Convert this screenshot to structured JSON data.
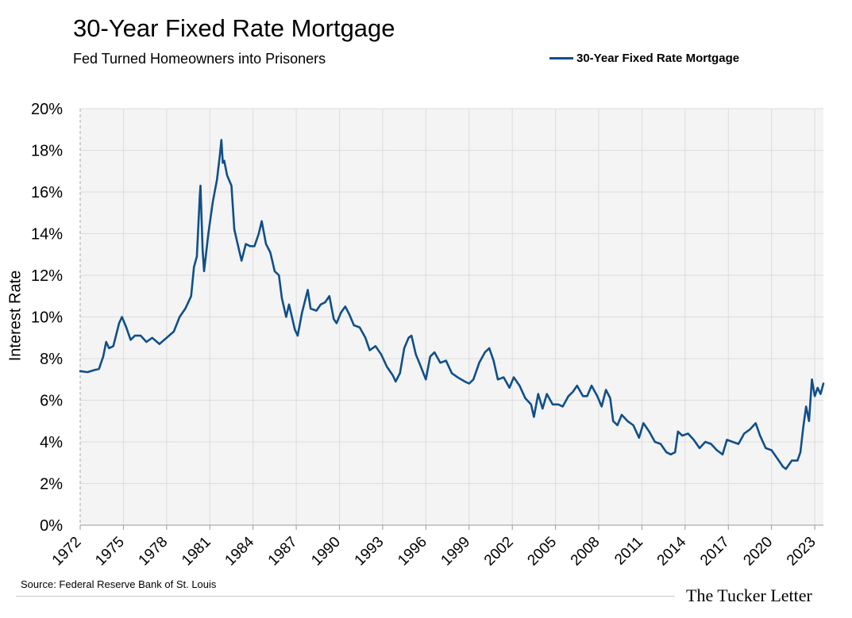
{
  "header": {
    "title": "30-Year Fixed Rate Mortgage",
    "subtitle": "Fed Turned Homeowners into Prisoners"
  },
  "footer": {
    "source": "Source: Federal Reserve Bank of St. Louis",
    "brand": "The Tucker Letter"
  },
  "chart_data": {
    "type": "line",
    "ylabel": "Interest Rate",
    "xlabel": "",
    "xlim": [
      1972,
      2023.6
    ],
    "ylim": [
      0,
      20
    ],
    "x_ticks": [
      1972,
      1975,
      1978,
      1981,
      1984,
      1987,
      1990,
      1993,
      1996,
      1999,
      2002,
      2005,
      2008,
      2011,
      2014,
      2017,
      2020,
      2023
    ],
    "y_ticks": [
      0,
      2,
      4,
      6,
      8,
      10,
      12,
      14,
      16,
      18,
      20
    ],
    "y_tick_labels": [
      "0%",
      "2%",
      "4%",
      "6%",
      "8%",
      "10%",
      "12%",
      "14%",
      "16%",
      "18%",
      "20%"
    ],
    "grid": true,
    "legend_position": "top-right",
    "colors": {
      "series": "#0f4f8a",
      "plot_bg": "#f4f4f4",
      "grid": "#dcdcdc"
    },
    "series": [
      {
        "name": "30-Year Fixed Rate Mortgage",
        "points": [
          [
            1972.0,
            7.4
          ],
          [
            1972.5,
            7.35
          ],
          [
            1973.0,
            7.45
          ],
          [
            1973.3,
            7.5
          ],
          [
            1973.6,
            8.1
          ],
          [
            1973.8,
            8.8
          ],
          [
            1974.0,
            8.5
          ],
          [
            1974.3,
            8.6
          ],
          [
            1974.7,
            9.7
          ],
          [
            1974.9,
            10.0
          ],
          [
            1975.2,
            9.5
          ],
          [
            1975.5,
            8.9
          ],
          [
            1975.8,
            9.1
          ],
          [
            1976.2,
            9.1
          ],
          [
            1976.6,
            8.8
          ],
          [
            1977.0,
            9.0
          ],
          [
            1977.5,
            8.7
          ],
          [
            1978.0,
            9.0
          ],
          [
            1978.5,
            9.3
          ],
          [
            1978.9,
            10.0
          ],
          [
            1979.3,
            10.4
          ],
          [
            1979.7,
            11.0
          ],
          [
            1979.9,
            12.4
          ],
          [
            1980.1,
            12.9
          ],
          [
            1980.3,
            15.8
          ],
          [
            1980.35,
            16.3
          ],
          [
            1980.5,
            13.2
          ],
          [
            1980.6,
            12.2
          ],
          [
            1980.9,
            14.0
          ],
          [
            1981.2,
            15.5
          ],
          [
            1981.5,
            16.6
          ],
          [
            1981.7,
            17.8
          ],
          [
            1981.8,
            18.5
          ],
          [
            1981.9,
            17.4
          ],
          [
            1982.0,
            17.5
          ],
          [
            1982.2,
            16.8
          ],
          [
            1982.5,
            16.3
          ],
          [
            1982.7,
            14.2
          ],
          [
            1982.9,
            13.6
          ],
          [
            1983.2,
            12.7
          ],
          [
            1983.5,
            13.5
          ],
          [
            1983.8,
            13.4
          ],
          [
            1984.1,
            13.4
          ],
          [
            1984.4,
            14.0
          ],
          [
            1984.6,
            14.6
          ],
          [
            1984.9,
            13.5
          ],
          [
            1985.2,
            13.1
          ],
          [
            1985.5,
            12.2
          ],
          [
            1985.8,
            12.0
          ],
          [
            1986.0,
            10.9
          ],
          [
            1986.3,
            10.0
          ],
          [
            1986.5,
            10.6
          ],
          [
            1986.9,
            9.4
          ],
          [
            1987.1,
            9.1
          ],
          [
            1987.4,
            10.2
          ],
          [
            1987.8,
            11.3
          ],
          [
            1988.0,
            10.4
          ],
          [
            1988.4,
            10.3
          ],
          [
            1988.7,
            10.6
          ],
          [
            1989.0,
            10.7
          ],
          [
            1989.3,
            11.0
          ],
          [
            1989.6,
            9.9
          ],
          [
            1989.8,
            9.7
          ],
          [
            1990.1,
            10.2
          ],
          [
            1990.4,
            10.5
          ],
          [
            1990.7,
            10.1
          ],
          [
            1991.0,
            9.6
          ],
          [
            1991.4,
            9.5
          ],
          [
            1991.8,
            9.0
          ],
          [
            1992.1,
            8.4
          ],
          [
            1992.5,
            8.6
          ],
          [
            1992.9,
            8.2
          ],
          [
            1993.3,
            7.6
          ],
          [
            1993.7,
            7.2
          ],
          [
            1993.9,
            6.9
          ],
          [
            1994.2,
            7.3
          ],
          [
            1994.5,
            8.5
          ],
          [
            1994.8,
            9.0
          ],
          [
            1995.0,
            9.1
          ],
          [
            1995.3,
            8.2
          ],
          [
            1995.6,
            7.7
          ],
          [
            1996.0,
            7.0
          ],
          [
            1996.3,
            8.1
          ],
          [
            1996.6,
            8.3
          ],
          [
            1997.0,
            7.8
          ],
          [
            1997.4,
            7.9
          ],
          [
            1997.8,
            7.3
          ],
          [
            1998.2,
            7.1
          ],
          [
            1998.7,
            6.9
          ],
          [
            1999.0,
            6.8
          ],
          [
            1999.3,
            7.0
          ],
          [
            1999.7,
            7.8
          ],
          [
            2000.1,
            8.3
          ],
          [
            2000.4,
            8.5
          ],
          [
            2000.7,
            7.9
          ],
          [
            2001.0,
            7.0
          ],
          [
            2001.4,
            7.1
          ],
          [
            2001.8,
            6.6
          ],
          [
            2002.1,
            7.1
          ],
          [
            2002.5,
            6.7
          ],
          [
            2002.9,
            6.1
          ],
          [
            2003.3,
            5.8
          ],
          [
            2003.5,
            5.2
          ],
          [
            2003.8,
            6.3
          ],
          [
            2004.1,
            5.6
          ],
          [
            2004.4,
            6.3
          ],
          [
            2004.8,
            5.8
          ],
          [
            2005.2,
            5.8
          ],
          [
            2005.5,
            5.7
          ],
          [
            2005.9,
            6.2
          ],
          [
            2006.2,
            6.4
          ],
          [
            2006.5,
            6.7
          ],
          [
            2006.9,
            6.2
          ],
          [
            2007.2,
            6.2
          ],
          [
            2007.5,
            6.7
          ],
          [
            2007.9,
            6.2
          ],
          [
            2008.2,
            5.7
          ],
          [
            2008.5,
            6.5
          ],
          [
            2008.8,
            6.1
          ],
          [
            2009.0,
            5.0
          ],
          [
            2009.3,
            4.8
          ],
          [
            2009.6,
            5.3
          ],
          [
            2010.0,
            5.0
          ],
          [
            2010.4,
            4.8
          ],
          [
            2010.8,
            4.2
          ],
          [
            2011.1,
            4.9
          ],
          [
            2011.5,
            4.5
          ],
          [
            2011.9,
            4.0
          ],
          [
            2012.3,
            3.9
          ],
          [
            2012.7,
            3.5
          ],
          [
            2013.0,
            3.4
          ],
          [
            2013.3,
            3.5
          ],
          [
            2013.5,
            4.5
          ],
          [
            2013.8,
            4.3
          ],
          [
            2014.2,
            4.4
          ],
          [
            2014.6,
            4.1
          ],
          [
            2015.0,
            3.7
          ],
          [
            2015.4,
            4.0
          ],
          [
            2015.8,
            3.9
          ],
          [
            2016.2,
            3.6
          ],
          [
            2016.6,
            3.4
          ],
          [
            2016.9,
            4.1
          ],
          [
            2017.3,
            4.0
          ],
          [
            2017.7,
            3.9
          ],
          [
            2018.1,
            4.4
          ],
          [
            2018.5,
            4.6
          ],
          [
            2018.9,
            4.9
          ],
          [
            2019.2,
            4.3
          ],
          [
            2019.6,
            3.7
          ],
          [
            2020.0,
            3.6
          ],
          [
            2020.4,
            3.2
          ],
          [
            2020.8,
            2.8
          ],
          [
            2021.0,
            2.7
          ],
          [
            2021.4,
            3.1
          ],
          [
            2021.8,
            3.1
          ],
          [
            2022.0,
            3.5
          ],
          [
            2022.2,
            4.7
          ],
          [
            2022.4,
            5.7
          ],
          [
            2022.6,
            5.0
          ],
          [
            2022.8,
            7.0
          ],
          [
            2023.0,
            6.2
          ],
          [
            2023.2,
            6.6
          ],
          [
            2023.4,
            6.3
          ],
          [
            2023.6,
            6.8
          ]
        ]
      }
    ]
  }
}
